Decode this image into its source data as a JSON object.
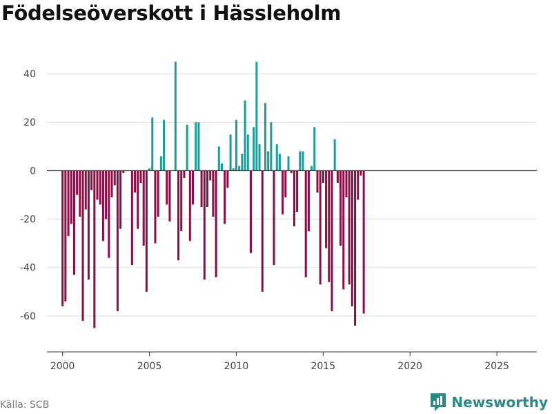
{
  "header": {
    "title": "Födelseöverskott i Hässleholm"
  },
  "footer": {
    "source": "Källa: SCB",
    "brand": "Newsworthy"
  },
  "colors": {
    "positive": "#1a9e9a",
    "negative": "#8e0d45",
    "brand": "#2a8a87",
    "grid": "#dddddd",
    "zero": "#333333"
  },
  "chart_data": {
    "type": "bar",
    "title": "Födelseöverskott i Hässleholm",
    "xlabel": "",
    "ylabel": "",
    "x_ticks": [
      "2000",
      "2005",
      "2010",
      "2015",
      "2020",
      "2025"
    ],
    "y_ticks": [
      "40",
      "20",
      "0",
      "-20",
      "-40",
      "-60"
    ],
    "xlim": [
      1999.1,
      2027.3
    ],
    "ylim": [
      -72,
      50
    ],
    "x_start": 2000.0,
    "x_step": 0.1667,
    "values": [
      -56,
      -54,
      -27,
      -22,
      -43,
      -10,
      -19,
      -62,
      -16,
      -45,
      -8,
      -65,
      -12,
      -14,
      -29,
      -20,
      -36,
      -11,
      -6,
      -58,
      -24,
      -1,
      0,
      0,
      -39,
      -9,
      -24,
      -5,
      -31,
      -50,
      1,
      22,
      -30,
      -19,
      6,
      21,
      -14,
      -21,
      0,
      45,
      -37,
      -25,
      -3,
      19,
      -29,
      -14,
      20,
      20,
      -15,
      -45,
      -15,
      -4,
      -19,
      -44,
      10,
      3,
      -22,
      -7,
      15,
      1,
      21,
      2,
      7,
      29,
      15,
      -34,
      18,
      45,
      11,
      -50,
      28,
      8,
      20,
      -39,
      11,
      7,
      -18,
      -11,
      6,
      -1,
      -23,
      -17,
      8,
      8,
      -44,
      -25,
      2,
      18,
      -9,
      -47,
      -5,
      -32,
      -46,
      -58,
      13,
      -5,
      -31,
      -49,
      -11,
      -47,
      -56,
      -64,
      -12,
      -2,
      -59
    ]
  }
}
